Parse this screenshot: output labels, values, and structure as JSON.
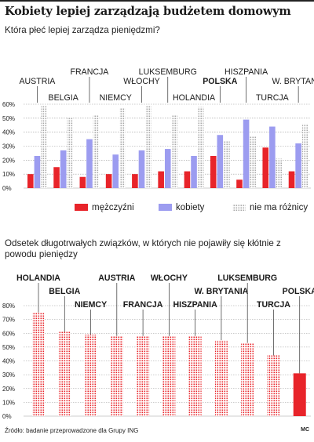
{
  "title": "Kobiety lepiej zarządzają budżetem domowym",
  "source": "Źródło: badanie przeprowadzone dla Grupy ING",
  "author": "MC",
  "colors": {
    "men": "#e8242a",
    "women": "#9c9cf0",
    "nodiff": "#b8b8b8",
    "chart2": "#e8242a",
    "highlight_bar": "#e8242a"
  },
  "chart_data": [
    {
      "type": "bar",
      "title": "Która płeć lepiej zarządza pieniędzmi?",
      "categories": [
        "AUSTRIA",
        "BELGIA",
        "FRANCJA",
        "NIEMCY",
        "WŁOCHY",
        "LUKSEMBURG",
        "HOLANDIA",
        "POLSKA",
        "HISZPANIA",
        "TURCJA",
        "W. BRYTANIA"
      ],
      "highlight": "POLSKA",
      "series": [
        {
          "name": "mężczyźni",
          "values": [
            10,
            15,
            8,
            10,
            10,
            12,
            12,
            23,
            6,
            29,
            12
          ]
        },
        {
          "name": "kobiety",
          "values": [
            23,
            27,
            35,
            24,
            27,
            28,
            23,
            38,
            49,
            44,
            32
          ]
        },
        {
          "name": "nie ma różnicy",
          "values": [
            59,
            51,
            52,
            57,
            59,
            52,
            58,
            34,
            37,
            21,
            46
          ]
        }
      ],
      "yticks": [
        "0%",
        "10%",
        "20%",
        "30%",
        "40%",
        "50%",
        "60%"
      ],
      "ylim": [
        0,
        60
      ]
    },
    {
      "type": "bar",
      "title": "Odsetek długotrwałych związków, w których nie pojawiły się kłótnie z powodu pieniędzy",
      "categories": [
        "HOLANDIA",
        "BELGIA",
        "NIEMCY",
        "AUSTRIA",
        "FRANCJA",
        "WŁOCHY",
        "HISZPANIA",
        "W. BRYTANIA",
        "LUKSEMBURG",
        "TURCJA",
        "POLSKA"
      ],
      "highlight": "POLSKA",
      "values": [
        75,
        61,
        59,
        58,
        58,
        58,
        58,
        55,
        53,
        44,
        31
      ],
      "yticks": [
        "0%",
        "10%",
        "20%",
        "30%",
        "40%",
        "50%",
        "60%",
        "70%",
        "80%"
      ],
      "ylim": [
        0,
        80
      ]
    }
  ]
}
